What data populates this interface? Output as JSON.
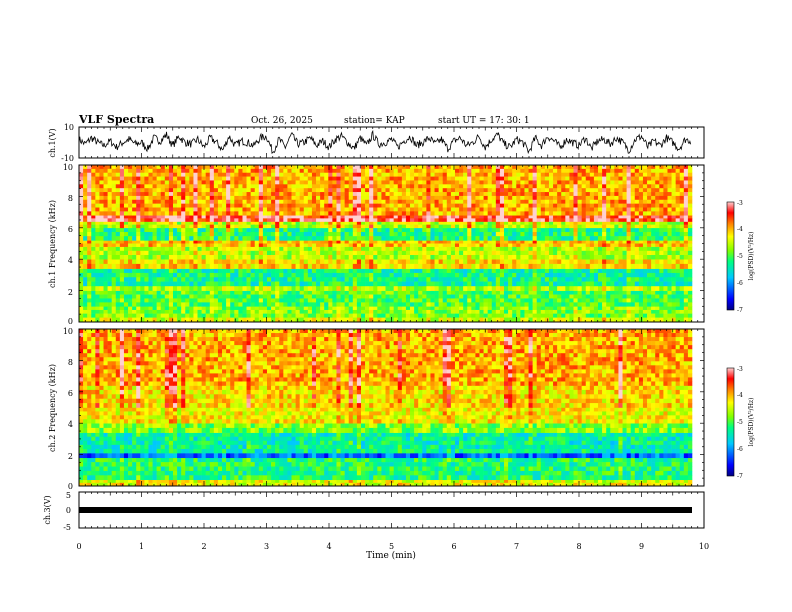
{
  "header": {
    "title": "VLF Spectra",
    "date": "Oct. 26, 2025",
    "station": "station= KAP",
    "start_ut": "start UT =   17: 30: 1"
  },
  "chart_data": [
    {
      "type": "line",
      "name": "ch1-waveform",
      "ylabel": "ch.1(V)",
      "ylim": [
        -10,
        10
      ],
      "yticks": [
        "10",
        "-10"
      ],
      "x": [
        0,
        0.1,
        0.2,
        0.3,
        0.4,
        0.5,
        0.6,
        0.7,
        0.8,
        0.9,
        1.0,
        1.1,
        1.2,
        1.3,
        1.4,
        1.5,
        1.6,
        1.7,
        1.8,
        1.9,
        2.0,
        2.1,
        2.2,
        2.3,
        2.4,
        2.5,
        2.6,
        2.7,
        2.8,
        2.9,
        3.0,
        3.1,
        3.2,
        3.3,
        3.4,
        3.5,
        3.6,
        3.7,
        3.8,
        3.9,
        4.0,
        4.1,
        4.2,
        4.3,
        4.4,
        4.5,
        4.6,
        4.7,
        4.8,
        4.9,
        5.0,
        5.1,
        5.2,
        5.3,
        5.4,
        5.5,
        5.6,
        5.7,
        5.8,
        5.9,
        6.0,
        6.1,
        6.2,
        6.3,
        6.4,
        6.5,
        6.6,
        6.7,
        6.8,
        6.9,
        7.0,
        7.1,
        7.2,
        7.3,
        7.4,
        7.5,
        7.6,
        7.7,
        7.8,
        7.9,
        8.0,
        8.1,
        8.2,
        8.3,
        8.4,
        8.5,
        8.6,
        8.7,
        8.8,
        8.9,
        9.0,
        9.1,
        9.2,
        9.3,
        9.4,
        9.5,
        9.6,
        9.7,
        9.8
      ],
      "values": [
        2,
        -1,
        3,
        0,
        -2,
        1,
        -3,
        0,
        2,
        -1,
        0,
        -4,
        3,
        1,
        5,
        -2,
        4,
        0,
        -1,
        2,
        -3,
        3,
        0,
        -5,
        4,
        -2,
        1,
        0,
        -2,
        3,
        4,
        -6,
        2,
        -3,
        5,
        -1,
        0,
        3,
        -2,
        1,
        -3,
        2,
        4,
        0,
        -4,
        3,
        -2,
        5,
        -1,
        0,
        2,
        -3,
        1,
        4,
        -2,
        0,
        3,
        -1,
        2,
        -4,
        1,
        3,
        -2,
        0,
        4,
        -3,
        2,
        5,
        -1,
        -3,
        2,
        0,
        -6,
        3,
        -2,
        4,
        1,
        -3,
        2,
        0,
        -2,
        3,
        -4,
        1,
        2,
        -1,
        3,
        0,
        -5,
        2,
        4,
        -3,
        1,
        -2,
        3,
        0,
        -4,
        2,
        1
      ]
    },
    {
      "type": "heatmap",
      "name": "ch1-spectrogram",
      "ylabel": "ch.1 Frequency (kHz)",
      "ylim": [
        0,
        10
      ],
      "yticks": [
        "0",
        "2",
        "4",
        "6",
        "8",
        "10"
      ],
      "colorbar": {
        "label": "log(PSD)(V²/Hz)",
        "range": [
          -7,
          -3
        ],
        "ticks": [
          "-3",
          "-4",
          "-5",
          "-6",
          "-7"
        ]
      },
      "bands_khz": [
        {
          "from": 0.0,
          "to": 0.3,
          "level": -4.5
        },
        {
          "from": 0.3,
          "to": 1.0,
          "level": -4.8
        },
        {
          "from": 1.0,
          "to": 2.0,
          "level": -5.0
        },
        {
          "from": 2.0,
          "to": 2.3,
          "level": -4.6
        },
        {
          "from": 2.3,
          "to": 3.4,
          "level": -5.3
        },
        {
          "from": 3.4,
          "to": 4.0,
          "level": -4.2
        },
        {
          "from": 4.0,
          "to": 4.8,
          "level": -4.6
        },
        {
          "from": 4.8,
          "to": 5.2,
          "level": -4.1
        },
        {
          "from": 5.2,
          "to": 6.0,
          "level": -5.2
        },
        {
          "from": 6.0,
          "to": 6.4,
          "level": -4.6
        },
        {
          "from": 6.4,
          "to": 6.8,
          "level": -3.3
        },
        {
          "from": 6.8,
          "to": 10.0,
          "level": -4.0
        }
      ]
    },
    {
      "type": "heatmap",
      "name": "ch2-spectrogram",
      "ylabel": "ch.2 Frequency (kHz)",
      "ylim": [
        0,
        10
      ],
      "yticks": [
        "0",
        "2",
        "4",
        "6",
        "8",
        "10"
      ],
      "colorbar": {
        "label": "log(PSD)(V²/Hz)",
        "range": [
          -7,
          -3
        ],
        "ticks": [
          "-3",
          "-4",
          "-5",
          "-6",
          "-7"
        ]
      },
      "bands_khz": [
        {
          "from": 0.0,
          "to": 0.4,
          "level": -4.4
        },
        {
          "from": 0.4,
          "to": 1.8,
          "level": -5.2
        },
        {
          "from": 1.8,
          "to": 2.1,
          "level": -6.2
        },
        {
          "from": 2.1,
          "to": 3.4,
          "level": -5.4
        },
        {
          "from": 3.4,
          "to": 4.0,
          "level": -4.8
        },
        {
          "from": 4.0,
          "to": 5.0,
          "level": -4.3
        },
        {
          "from": 5.0,
          "to": 6.4,
          "level": -4.2
        },
        {
          "from": 6.4,
          "to": 10.0,
          "level": -4.0
        }
      ]
    },
    {
      "type": "line",
      "name": "ch3-waveform",
      "ylabel": "ch.3(V)",
      "ylim": [
        -5,
        5
      ],
      "yticks": [
        "5",
        "0",
        "-5"
      ],
      "x": [
        0,
        9.8
      ],
      "values": [
        0,
        0
      ]
    }
  ],
  "x_axis": {
    "label": "Time (min)",
    "range": [
      0,
      10
    ],
    "ticks": [
      "0",
      "1",
      "2",
      "3",
      "4",
      "5",
      "6",
      "7",
      "8",
      "9",
      "10"
    ]
  },
  "colors": {
    "colormap": [
      "#000080",
      "#0000ff",
      "#00c8ff",
      "#00ff80",
      "#80ff00",
      "#ffff00",
      "#ff8000",
      "#ff0000",
      "#ffd0d0"
    ]
  }
}
